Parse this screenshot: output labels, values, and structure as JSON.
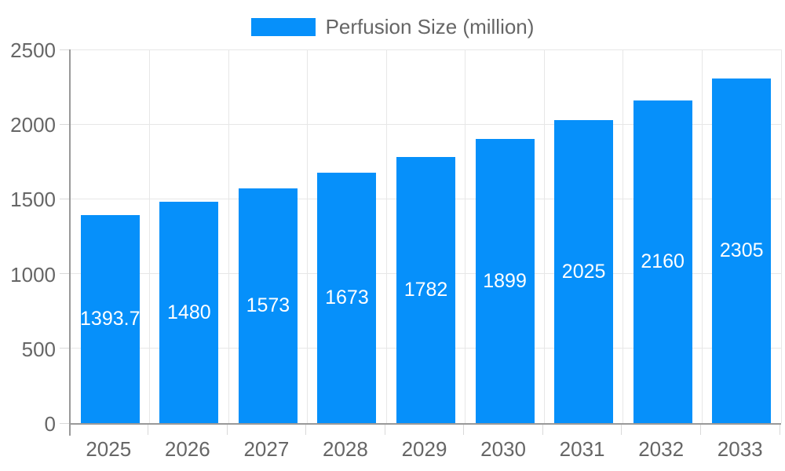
{
  "chart": {
    "legend": {
      "label": "Perfusion Size (million)"
    },
    "colors": {
      "bar": "#0690FA",
      "bar_label": "#ffffff",
      "axis_text": "#666666",
      "axis_line": "#999999",
      "grid_line": "#e7e7e7",
      "tick": "#d9d9d9",
      "background": "#ffffff"
    }
  },
  "chart_data": {
    "type": "bar",
    "title": "",
    "categories": [
      "2025",
      "2026",
      "2027",
      "2028",
      "2029",
      "2030",
      "2031",
      "2032",
      "2033"
    ],
    "series": [
      {
        "name": "Perfusion Size (million)",
        "values": [
          1393.7,
          1480,
          1573,
          1673,
          1782,
          1899,
          2025,
          2160,
          2305
        ]
      }
    ],
    "value_labels": [
      "1393.7",
      "1480",
      "1573",
      "1673",
      "1782",
      "1899",
      "2025",
      "2160",
      "2305"
    ],
    "xlabel": "",
    "ylabel": "",
    "ylim": [
      0,
      2500
    ],
    "yticks": [
      0,
      500,
      1000,
      1500,
      2000,
      2500
    ],
    "grid": true,
    "legend_position": "top",
    "value_labels_inside_bars": true
  }
}
